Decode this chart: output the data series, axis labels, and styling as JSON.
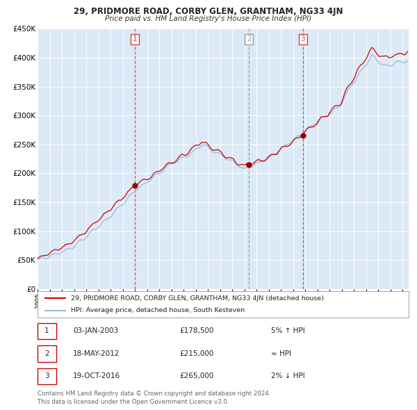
{
  "title": "29, PRIDMORE ROAD, CORBY GLEN, GRANTHAM, NG33 4JN",
  "subtitle": "Price paid vs. HM Land Registry's House Price Index (HPI)",
  "legend_line1": "29, PRIDMORE ROAD, CORBY GLEN, GRANTHAM, NG33 4JN (detached house)",
  "legend_line2": "HPI: Average price, detached house, South Kesteven",
  "table_rows": [
    {
      "num": "1",
      "date": "03-JAN-2003",
      "price": "£178,500",
      "hpi_rel": "5% ↑ HPI"
    },
    {
      "num": "2",
      "date": "18-MAY-2012",
      "price": "£215,000",
      "hpi_rel": "≈ HPI"
    },
    {
      "num": "3",
      "date": "19-OCT-2016",
      "price": "£265,000",
      "hpi_rel": "2% ↓ HPI"
    }
  ],
  "footer": "Contains HM Land Registry data © Crown copyright and database right 2024.\nThis data is licensed under the Open Government Licence v3.0.",
  "ylim": [
    0,
    450000
  ],
  "yticks": [
    0,
    50000,
    100000,
    150000,
    200000,
    250000,
    300000,
    350000,
    400000,
    450000
  ],
  "xlim_start": 1995.0,
  "xlim_end": 2025.5,
  "bg_color": "#dce9f7",
  "grid_color": "#ffffff",
  "red_line_color": "#cc0000",
  "blue_line_color": "#8bbfdf",
  "sale_marker_color": "#990000",
  "vline_red_color": "#cc4444",
  "vline_gray_color": "#999999",
  "sales_dates": [
    2003.01,
    2012.38,
    2016.8
  ],
  "sales_prices": [
    178500,
    215000,
    265000
  ],
  "sales_vline_styles": [
    "red",
    "gray",
    "red"
  ],
  "sales_labels": [
    "1",
    "2",
    "3"
  ]
}
